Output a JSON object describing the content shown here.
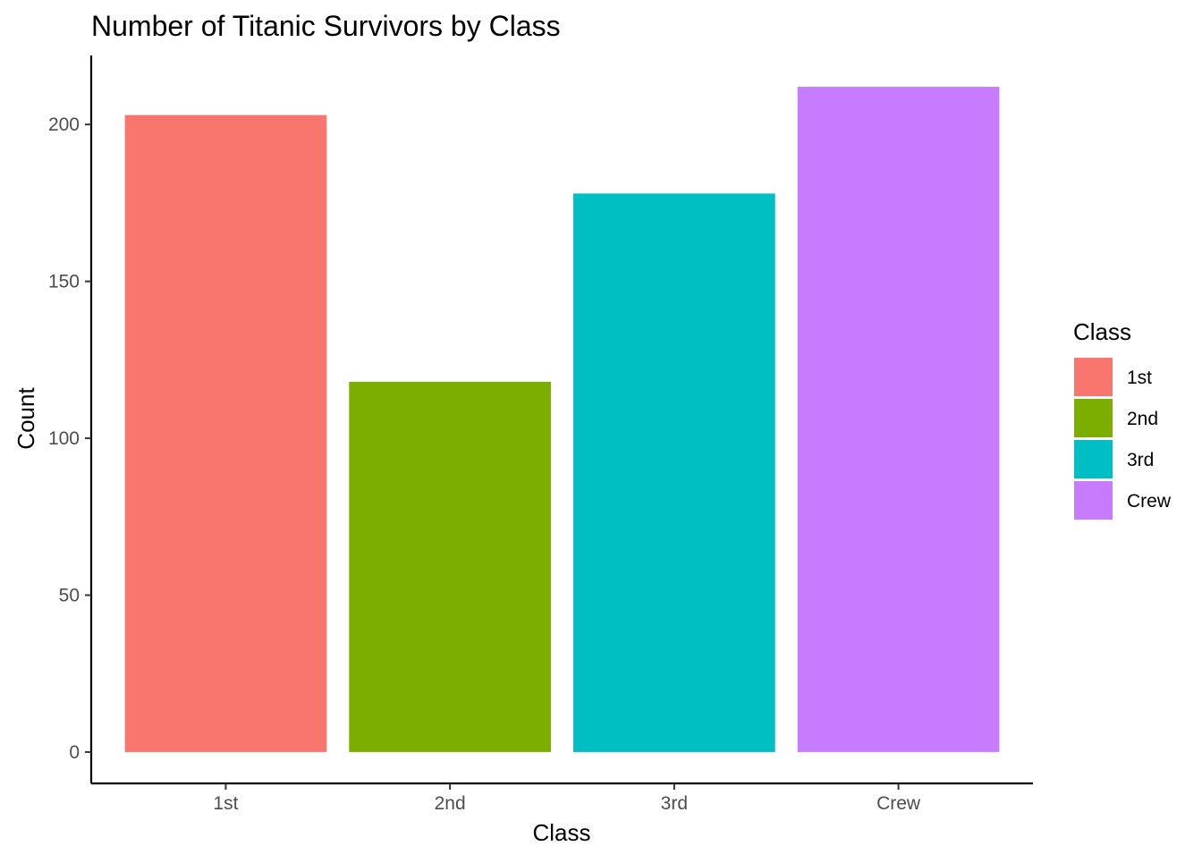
{
  "chart_data": {
    "type": "bar",
    "title": "Number of Titanic Survivors by Class",
    "xlabel": "Class",
    "ylabel": "Count",
    "categories": [
      "1st",
      "2nd",
      "3rd",
      "Crew"
    ],
    "values": [
      203,
      118,
      178,
      212
    ],
    "colors": [
      "#F8766D",
      "#7CAE00",
      "#00BFC4",
      "#C77CFF"
    ],
    "ylim": [
      -10,
      222
    ],
    "yticks": [
      0,
      50,
      100,
      150,
      200
    ],
    "grid": false,
    "legend": {
      "title": "Class",
      "position": "right",
      "entries": [
        "1st",
        "2nd",
        "3rd",
        "Crew"
      ]
    }
  }
}
